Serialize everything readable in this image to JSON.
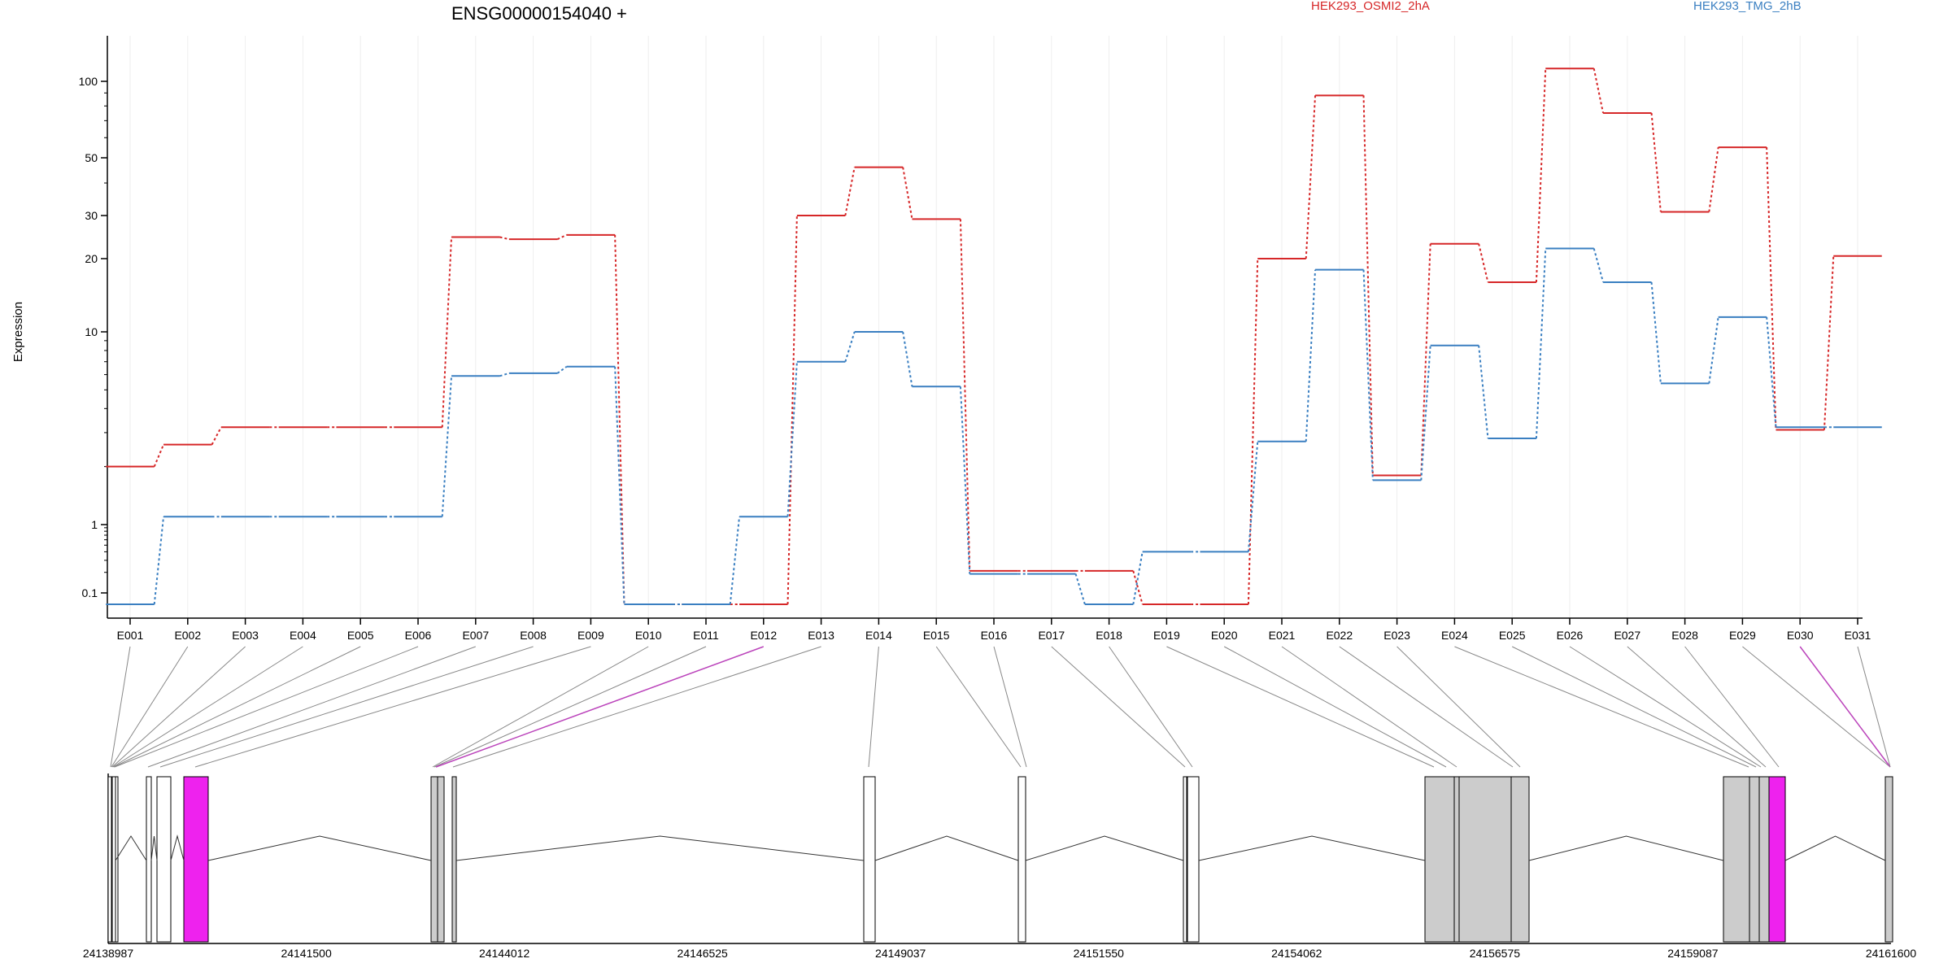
{
  "chart_data": {
    "type": "line",
    "title": "ENSG00000154040 +",
    "ylabel": "Expression",
    "yscale": "log-like",
    "ylim": [
      0.07,
      150
    ],
    "yticks": [
      "0.1",
      "1",
      "10",
      "20",
      "30",
      "50",
      "100"
    ],
    "categories": [
      "E001",
      "E002",
      "E003",
      "E004",
      "E005",
      "E006",
      "E007",
      "E008",
      "E009",
      "E010",
      "E011",
      "E012",
      "E013",
      "E014",
      "E015",
      "E016",
      "E017",
      "E018",
      "E019",
      "E020",
      "E021",
      "E022",
      "E023",
      "E024",
      "E025",
      "E026",
      "E027",
      "E028",
      "E029",
      "E030",
      "E031"
    ],
    "series": [
      {
        "name": "HEK293_OSMI2_2hA",
        "color": "#d62728",
        "values": [
          2.0,
          2.6,
          3.2,
          3.2,
          3.2,
          3.2,
          24.5,
          24.0,
          25.0,
          0.07,
          0.07,
          0.07,
          30.0,
          46.0,
          29.0,
          0.21,
          0.21,
          0.21,
          0.07,
          0.07,
          20.0,
          88.0,
          1.8,
          23.0,
          16.0,
          120.0,
          75.0,
          31.0,
          55.0,
          3.1,
          20.5
        ]
      },
      {
        "name": "HEK293_TMG_2hB",
        "color": "#3a7fc1",
        "values": [
          0.07,
          1.1,
          1.1,
          1.1,
          1.1,
          1.1,
          5.9,
          6.1,
          6.6,
          0.07,
          0.07,
          1.1,
          7.0,
          10.0,
          5.2,
          0.19,
          0.19,
          0.07,
          0.4,
          0.4,
          2.7,
          18.0,
          1.7,
          8.5,
          2.8,
          22.0,
          16.0,
          5.4,
          11.5,
          3.2,
          3.2
        ]
      }
    ],
    "gene_model": {
      "coordinates": [
        "24138987",
        "24141500",
        "24144012",
        "24146525",
        "24149037",
        "24151550",
        "24154062",
        "24156575",
        "24159087",
        "24161600"
      ],
      "coord_range": [
        24138987,
        24161600
      ],
      "highlight_color": "#ee22ee",
      "exon_fill_color": "#cccccc",
      "highlighted_exons": [
        "E012",
        "E030"
      ]
    }
  }
}
